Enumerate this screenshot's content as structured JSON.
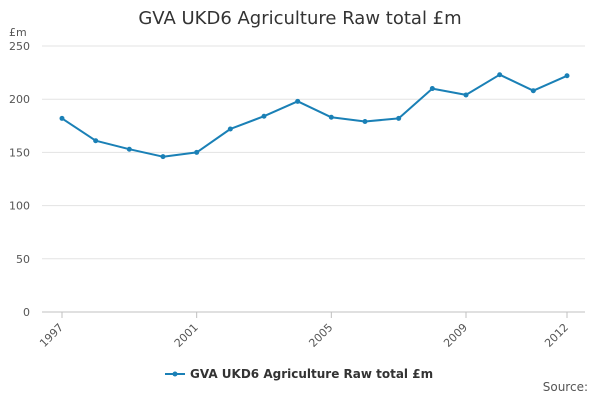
{
  "chart_data": {
    "type": "line",
    "title": "GVA UKD6 Agriculture Raw total £m",
    "ylabel": "£m",
    "xlabel": "",
    "ylim": [
      0,
      250
    ],
    "yticks": [
      0,
      50,
      100,
      150,
      200,
      250
    ],
    "xticks": [
      1997,
      2001,
      2005,
      2009,
      2012
    ],
    "grid": true,
    "legend": "bottom",
    "series": [
      {
        "name": "GVA UKD6 Agriculture Raw total £m",
        "color": "#1a80b6",
        "points": [
          {
            "x": 1997,
            "y": 182
          },
          {
            "x": 1998,
            "y": 161
          },
          {
            "x": 1999,
            "y": 153
          },
          {
            "x": 2000,
            "y": 146
          },
          {
            "x": 2001,
            "y": 150
          },
          {
            "x": 2002,
            "y": 172
          },
          {
            "x": 2003,
            "y": 184
          },
          {
            "x": 2004,
            "y": 198
          },
          {
            "x": 2005,
            "y": 183
          },
          {
            "x": 2006,
            "y": 179
          },
          {
            "x": 2007,
            "y": 182
          },
          {
            "x": 2008,
            "y": 210
          },
          {
            "x": 2009,
            "y": 204
          },
          {
            "x": 2010,
            "y": 223
          },
          {
            "x": 2011,
            "y": 208
          },
          {
            "x": 2012,
            "y": 222
          }
        ]
      }
    ]
  },
  "source_label": "Source:"
}
